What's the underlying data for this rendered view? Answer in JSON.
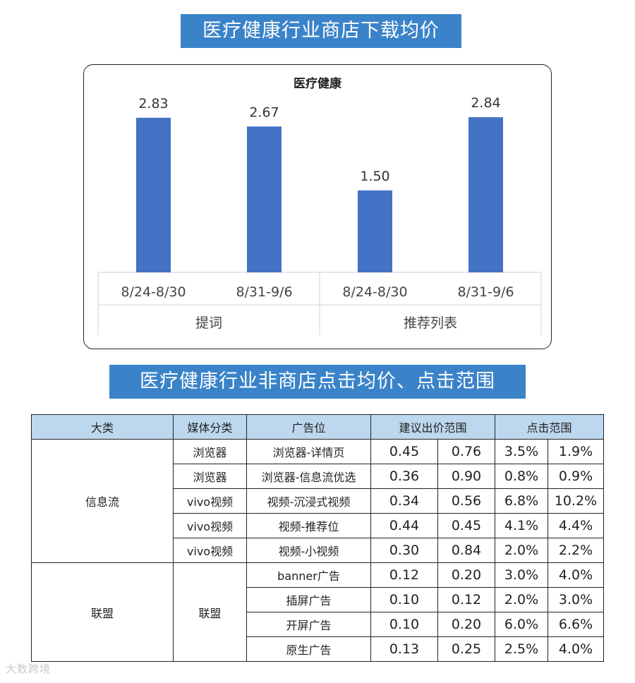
{
  "banner_1": "医疗健康行业商店下载均价",
  "banner_2": "医疗健康行业非商店点击均价、点击范围",
  "chart_data": {
    "type": "bar",
    "title": "医疗健康",
    "groups": [
      {
        "name": "提词",
        "categories": [
          "8/24-8/30",
          "8/31-9/6"
        ],
        "values": [
          2.83,
          2.67
        ],
        "labels": [
          "2.83",
          "2.67"
        ]
      },
      {
        "name": "推荐列表",
        "categories": [
          "8/24-8/30",
          "8/31-9/6"
        ],
        "values": [
          1.5,
          2.84
        ],
        "labels": [
          "1.50",
          "2.84"
        ]
      }
    ],
    "ylim": [
      0,
      3.1
    ],
    "grid": false,
    "bar_color": "#4472c4"
  },
  "table": {
    "headers": [
      "大类",
      "媒体分类",
      "广告位",
      "建议出价范围",
      "点击范围"
    ],
    "groups": [
      {
        "category": "信息流",
        "rows": [
          {
            "media": "浏览器",
            "slot": "浏览器-详情页",
            "bid_low": "0.45",
            "bid_high": "0.76",
            "click_a": "3.5%",
            "click_b": "1.9%"
          },
          {
            "media": "浏览器",
            "slot": "浏览器-信息流优选",
            "bid_low": "0.36",
            "bid_high": "0.90",
            "click_a": "0.8%",
            "click_b": "0.9%"
          },
          {
            "media": "vivo视频",
            "slot": "视频-沉浸式视频",
            "bid_low": "0.34",
            "bid_high": "0.56",
            "click_a": "6.8%",
            "click_b": "10.2%"
          },
          {
            "media": "vivo视频",
            "slot": "视频-推荐位",
            "bid_low": "0.44",
            "bid_high": "0.45",
            "click_a": "4.1%",
            "click_b": "4.4%"
          },
          {
            "media": "vivo视频",
            "slot": "视频-小视频",
            "bid_low": "0.30",
            "bid_high": "0.84",
            "click_a": "2.0%",
            "click_b": "2.2%"
          }
        ]
      },
      {
        "category": "联盟",
        "media": "联盟",
        "rows": [
          {
            "slot": "banner广告",
            "bid_low": "0.12",
            "bid_high": "0.20",
            "click_a": "3.0%",
            "click_b": "4.0%"
          },
          {
            "slot": "插屏广告",
            "bid_low": "0.10",
            "bid_high": "0.12",
            "click_a": "2.0%",
            "click_b": "3.0%"
          },
          {
            "slot": "开屏广告",
            "bid_low": "0.10",
            "bid_high": "0.20",
            "click_a": "6.0%",
            "click_b": "6.6%"
          },
          {
            "slot": "原生广告",
            "bid_low": "0.13",
            "bid_high": "0.25",
            "click_a": "2.5%",
            "click_b": "4.0%"
          }
        ]
      }
    ]
  },
  "watermark": "大数跨境"
}
